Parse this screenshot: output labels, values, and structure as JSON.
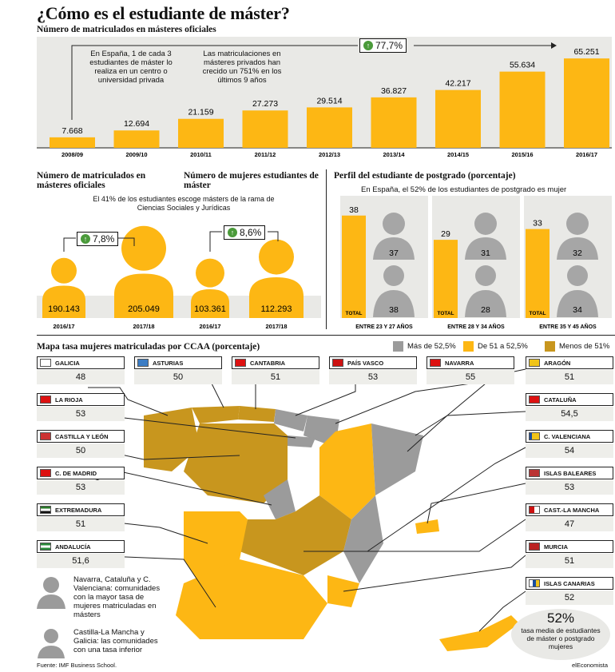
{
  "title": "¿Cómo es el estudiante de máster?",
  "subtitle": "Número de matriculados en másteres oficiales",
  "colors": {
    "accent": "#fdb714",
    "dark_gold": "#c8961e",
    "gray": "#9b9b9b",
    "panel": "#e9e9e6"
  },
  "top_notes": {
    "note1": "En España, 1 de cada 3 estudiantes de máster lo realiza en un centro o universidad privada",
    "note2": "Las matriculaciones en másteres privados han crecido un 751% en los últimos 9 años",
    "growth": "77,7%"
  },
  "chart_data": [
    {
      "type": "bar",
      "title": "Número de matriculados en másteres oficiales",
      "categories": [
        "2008/09",
        "2009/10",
        "2010/11",
        "2011/12",
        "2012/13",
        "2013/14",
        "2014/15",
        "2015/16",
        "2016/17"
      ],
      "values": [
        7668,
        12694,
        21159,
        27273,
        29514,
        36827,
        42217,
        55634,
        65251
      ],
      "labels": [
        "7.668",
        "12.694",
        "21.159",
        "27.273",
        "29.514",
        "36.827",
        "42.217",
        "55.634",
        "65.251"
      ],
      "ylim": [
        0,
        70000
      ]
    },
    {
      "type": "bar",
      "title": "Número de matriculados en másteres oficiales",
      "categories": [
        "2016/17",
        "2017/18"
      ],
      "values": [
        190143,
        205049
      ],
      "labels": [
        "190.143",
        "205.049"
      ],
      "change": "7,8%"
    },
    {
      "type": "bar",
      "title": "Número de mujeres estudiantes de máster",
      "categories": [
        "2016/17",
        "2017/18"
      ],
      "values": [
        103361,
        112293
      ],
      "labels": [
        "103.361",
        "112.293"
      ],
      "change": "8,6%"
    },
    {
      "type": "bar",
      "title": "Perfil del estudiante de postgrado (porcentaje)",
      "subtitle": "En España, el 52% de los estudiantes de postgrado es mujer",
      "categories": [
        "ENTRE 23 Y 27 AÑOS",
        "ENTRE 28 Y 34 AÑOS",
        "ENTRE 35 Y 45 AÑOS"
      ],
      "series": [
        {
          "name": "TOTAL",
          "values": [
            38,
            29,
            33
          ]
        },
        {
          "values": [
            37,
            31,
            32
          ]
        },
        {
          "values": [
            38,
            28,
            34
          ]
        }
      ],
      "ylim": [
        0,
        40
      ]
    },
    {
      "type": "table",
      "title": "Mapa tasa mujeres matriculadas por CCAA (porcentaje)",
      "legend": [
        "Más de 52,5%",
        "De 51 a 52,5%",
        "Menos de 51%"
      ],
      "regions": [
        {
          "name": "GALICIA",
          "value": "48"
        },
        {
          "name": "ASTURIAS",
          "value": "50"
        },
        {
          "name": "CANTABRIA",
          "value": "51"
        },
        {
          "name": "PAÍS VASCO",
          "value": "53"
        },
        {
          "name": "NAVARRA",
          "value": "55"
        },
        {
          "name": "ARAGÓN",
          "value": "51"
        },
        {
          "name": "LA RIOJA",
          "value": "53"
        },
        {
          "name": "CASTILLA Y LEÓN",
          "value": "50"
        },
        {
          "name": "C. DE MADRID",
          "value": "53"
        },
        {
          "name": "EXTREMADURA",
          "value": "51"
        },
        {
          "name": "ANDALUCÍA",
          "value": "51,6"
        },
        {
          "name": "CATALUÑA",
          "value": "54,5"
        },
        {
          "name": "C. VALENCIANA",
          "value": "54"
        },
        {
          "name": "ISLAS BALEARES",
          "value": "53"
        },
        {
          "name": "CAST.-LA MANCHA",
          "value": "47"
        },
        {
          "name": "MURCIA",
          "value": "51"
        },
        {
          "name": "ISLAS CANARIAS",
          "value": "52"
        }
      ]
    }
  ],
  "lower_left": {
    "note": "El 41% de los estudiantes escoge másters de la rama de Ciencias Sociales y Jurídicas"
  },
  "map_notes": {
    "high": "Navarra, Cataluña y C. Valenciana: comunidades con la mayor tasa de mujeres matriculadas en másters",
    "low": "Castilla-La Mancha y Galicia: las comunidades con una tasa inferior",
    "avg_value": "52%",
    "avg_text": "tasa media de estudiantes de máster o postgrado mujeres"
  },
  "footer": {
    "source": "Fuente: IMF Business School.",
    "brand": "elEconomista"
  }
}
